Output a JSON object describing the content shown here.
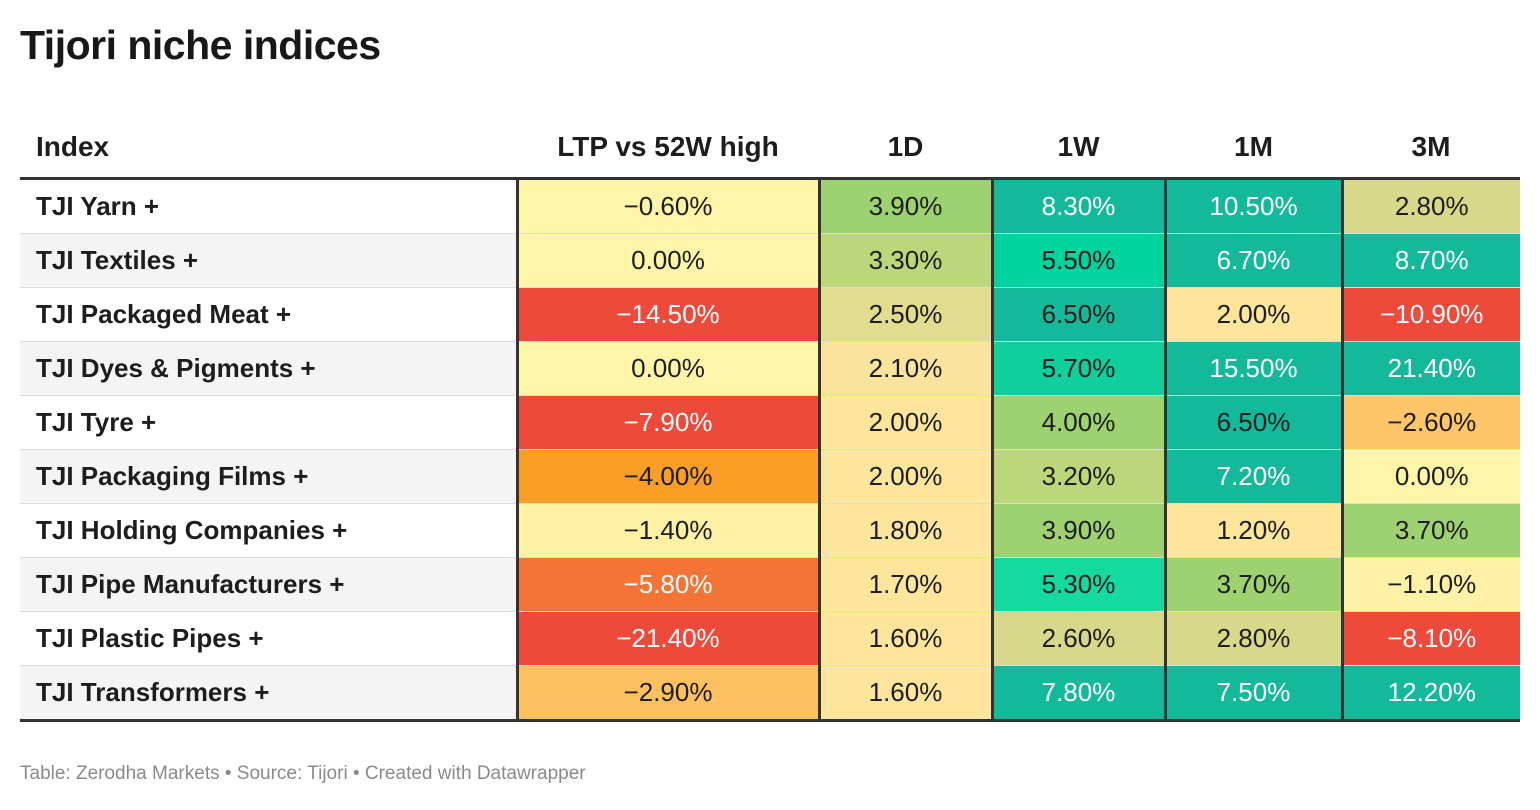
{
  "title": "Tijori niche indices",
  "footer": "Table: Zerodha Markets • Source: Tijori • Created with Datawrapper",
  "chart_data": {
    "type": "table",
    "title": "Tijori niche indices",
    "columns": [
      "Index",
      "LTP vs 52W high",
      "1D",
      "1W",
      "1M",
      "3M"
    ],
    "rows": [
      {
        "label": "TJI Yarn +",
        "cells": [
          "−0.60%",
          "3.90%",
          "8.30%",
          "10.50%",
          "2.80%"
        ],
        "values": [
          -0.6,
          3.9,
          8.3,
          10.5,
          2.8
        ],
        "colors": [
          "#fff5a8",
          "#9ed16f",
          "#13b99a",
          "#13b99a",
          "#d7d88a"
        ],
        "text_colors": [
          "#1d1d1d",
          "#1d1d1d",
          "#ffffff",
          "#ffffff",
          "#1d1d1d"
        ]
      },
      {
        "label": "TJI Textiles +",
        "cells": [
          "0.00%",
          "3.30%",
          "5.50%",
          "6.70%",
          "8.70%"
        ],
        "values": [
          0.0,
          3.3,
          5.5,
          6.7,
          8.7
        ],
        "colors": [
          "#fff5a8",
          "#bcd67a",
          "#00d39d",
          "#13b99a",
          "#13b99a"
        ],
        "text_colors": [
          "#1d1d1d",
          "#1d1d1d",
          "#1d1d1d",
          "#ffffff",
          "#ffffff"
        ]
      },
      {
        "label": "TJI Packaged Meat +",
        "cells": [
          "−14.50%",
          "2.50%",
          "6.50%",
          "2.00%",
          "−10.90%"
        ],
        "values": [
          -14.5,
          2.5,
          6.5,
          2.0,
          -10.9
        ],
        "colors": [
          "#ee4a3c",
          "#e2dc8e",
          "#13b99a",
          "#fde69c",
          "#ee4a3c"
        ],
        "text_colors": [
          "#ffffff",
          "#1d1d1d",
          "#1d1d1d",
          "#1d1d1d",
          "#ffffff"
        ]
      },
      {
        "label": "TJI Dyes & Pigments +",
        "cells": [
          "0.00%",
          "2.10%",
          "5.70%",
          "15.50%",
          "21.40%"
        ],
        "values": [
          0.0,
          2.1,
          5.7,
          15.5,
          21.4
        ],
        "colors": [
          "#fff5a8",
          "#fae39c",
          "#0fcf9c",
          "#13b99a",
          "#13b99a"
        ],
        "text_colors": [
          "#1d1d1d",
          "#1d1d1d",
          "#1d1d1d",
          "#ffffff",
          "#ffffff"
        ]
      },
      {
        "label": "TJI Tyre +",
        "cells": [
          "−7.90%",
          "2.00%",
          "4.00%",
          "6.50%",
          "−2.60%"
        ],
        "values": [
          -7.9,
          2.0,
          4.0,
          6.5,
          -2.6
        ],
        "colors": [
          "#ee4a3c",
          "#fde69c",
          "#9ed16f",
          "#13b99a",
          "#fdc668"
        ],
        "text_colors": [
          "#ffffff",
          "#1d1d1d",
          "#1d1d1d",
          "#1d1d1d",
          "#1d1d1d"
        ]
      },
      {
        "label": "TJI Packaging Films +",
        "cells": [
          "−4.00%",
          "2.00%",
          "3.20%",
          "7.20%",
          "0.00%"
        ],
        "values": [
          -4.0,
          2.0,
          3.2,
          7.2,
          0.0
        ],
        "colors": [
          "#fb9e25",
          "#fde69c",
          "#bcd67a",
          "#13b99a",
          "#fff5a8"
        ],
        "text_colors": [
          "#1d1d1d",
          "#1d1d1d",
          "#1d1d1d",
          "#ffffff",
          "#1d1d1d"
        ]
      },
      {
        "label": "TJI Holding Companies +",
        "cells": [
          "−1.40%",
          "1.80%",
          "3.90%",
          "1.20%",
          "3.70%"
        ],
        "values": [
          -1.4,
          1.8,
          3.9,
          1.2,
          3.7
        ],
        "colors": [
          "#fff1a4",
          "#fde69c",
          "#9ed16f",
          "#fde69c",
          "#9ed16f"
        ],
        "text_colors": [
          "#1d1d1d",
          "#1d1d1d",
          "#1d1d1d",
          "#1d1d1d",
          "#1d1d1d"
        ]
      },
      {
        "label": "TJI Pipe Manufacturers +",
        "cells": [
          "−5.80%",
          "1.70%",
          "5.30%",
          "3.70%",
          "−1.10%"
        ],
        "values": [
          -5.8,
          1.7,
          5.3,
          3.7,
          -1.1
        ],
        "colors": [
          "#f47436",
          "#fde69c",
          "#16d9a0",
          "#9ed16f",
          "#fff2a6"
        ],
        "text_colors": [
          "#ffffff",
          "#1d1d1d",
          "#1d1d1d",
          "#1d1d1d",
          "#1d1d1d"
        ]
      },
      {
        "label": "TJI Plastic Pipes +",
        "cells": [
          "−21.40%",
          "1.60%",
          "2.60%",
          "2.80%",
          "−8.10%"
        ],
        "values": [
          -21.4,
          1.6,
          2.6,
          2.8,
          -8.1
        ],
        "colors": [
          "#ee4a3c",
          "#fde69c",
          "#d7d88a",
          "#d7d88a",
          "#ee4a3c"
        ],
        "text_colors": [
          "#ffffff",
          "#1d1d1d",
          "#1d1d1d",
          "#1d1d1d",
          "#ffffff"
        ]
      },
      {
        "label": "TJI Transformers +",
        "cells": [
          "−2.90%",
          "1.60%",
          "7.80%",
          "7.50%",
          "12.20%"
        ],
        "values": [
          -2.9,
          1.6,
          7.8,
          7.5,
          12.2
        ],
        "colors": [
          "#fdc05e",
          "#fde69c",
          "#13b99a",
          "#13b99a",
          "#13b99a"
        ],
        "text_colors": [
          "#1d1d1d",
          "#1d1d1d",
          "#ffffff",
          "#ffffff",
          "#ffffff"
        ]
      }
    ]
  }
}
